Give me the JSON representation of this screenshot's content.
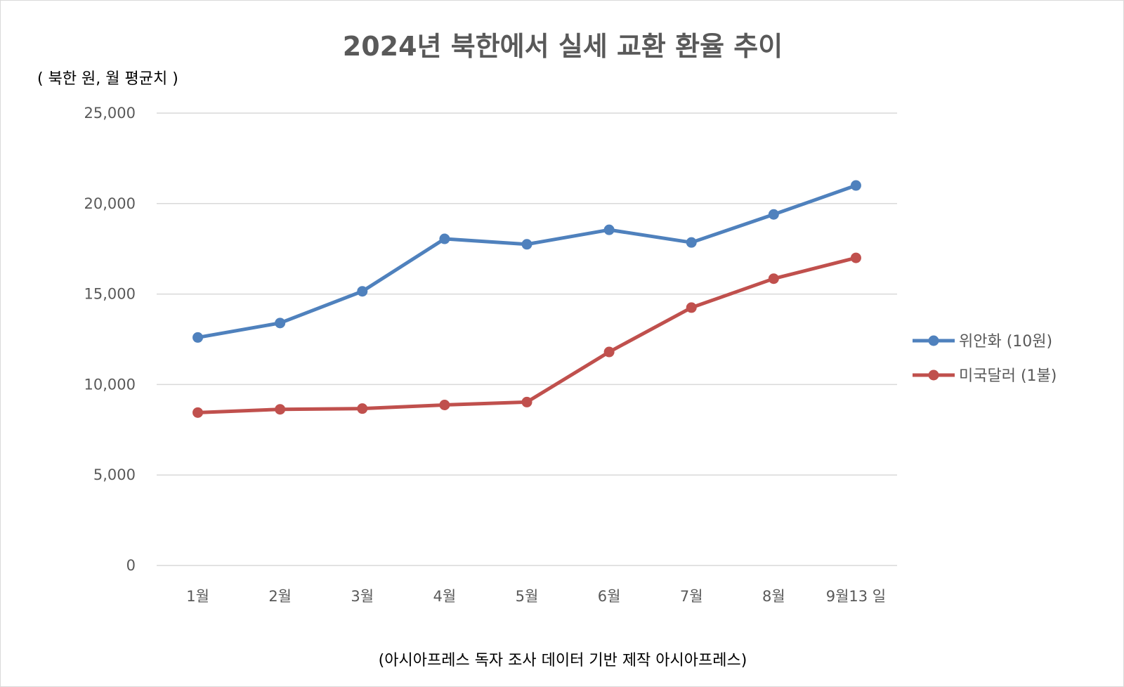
{
  "chart_data": {
    "type": "line",
    "title": "2024년 북한에서 실세 교환 환율 추이",
    "unit_label": "( 북한 원, 월 평균치 )",
    "categories": [
      "1월",
      "2월",
      "3월",
      "4월",
      "5월",
      "6월",
      "7월",
      "8월",
      "9월13 일"
    ],
    "y_ticks": [
      "0",
      "5,000",
      "10,000",
      "15,000",
      "20,000",
      "25,000"
    ],
    "ylim": [
      0,
      25000
    ],
    "grid": true,
    "legend_position": "right",
    "series": [
      {
        "name": "위안화 (10원)",
        "color": "#4f81bd",
        "values": [
          12600,
          13400,
          15150,
          18050,
          17750,
          18550,
          17850,
          19400,
          21000
        ]
      },
      {
        "name": "미국달러 (1불)",
        "color": "#c0504d",
        "values": [
          8450,
          8630,
          8670,
          8870,
          9030,
          11800,
          14250,
          15850,
          17000
        ]
      }
    ],
    "footer": "(아시아프레스 독자 조사 데이터 기반      제작 아시아프레스)"
  }
}
